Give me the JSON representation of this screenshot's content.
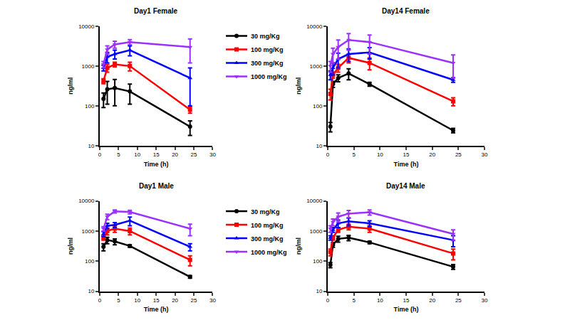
{
  "chart_data": [
    {
      "type": "line",
      "title": "Day1 Female",
      "x_label": "Time (h)",
      "y_label": "ng/ml",
      "x": [
        1,
        2,
        4,
        8,
        24
      ],
      "xlim": [
        0,
        30
      ],
      "xticks": [
        0,
        5,
        10,
        15,
        20,
        25,
        30
      ],
      "ylim": [
        10,
        10000
      ],
      "yticks": [
        10,
        100,
        1000,
        10000
      ],
      "log": "y",
      "grid": false,
      "legend": "right",
      "series": [
        {
          "name": "30 mg/Kg",
          "color": "#000000",
          "marker": "circle",
          "values": [
            150,
            260,
            280,
            230,
            30
          ],
          "errors": [
            60,
            150,
            180,
            120,
            12
          ]
        },
        {
          "name": "100 mg/Kg",
          "color": "#ff0000",
          "marker": "square",
          "values": [
            420,
            900,
            1100,
            1000,
            80
          ],
          "errors": [
            60,
            200,
            150,
            250,
            15
          ]
        },
        {
          "name": "300 mg/Kg",
          "color": "#0000ff",
          "marker": "triangle-up",
          "values": [
            900,
            1700,
            2000,
            2500,
            500
          ],
          "errors": [
            150,
            500,
            500,
            700,
            400
          ]
        },
        {
          "name": "1000 mg/Kg",
          "color": "#9b30ff",
          "marker": "triangle-down",
          "values": [
            1100,
            2600,
            3500,
            4000,
            3000
          ],
          "errors": [
            200,
            600,
            700,
            600,
            1800
          ]
        }
      ]
    },
    {
      "type": "line",
      "title": "Day14 Female",
      "x_label": "Time (h)",
      "y_label": "ng/ml",
      "x": [
        0.5,
        1,
        2,
        4,
        8,
        24
      ],
      "xlim": [
        0,
        30
      ],
      "xticks": [
        0,
        5,
        10,
        15,
        20,
        25,
        30
      ],
      "ylim": [
        10,
        10000
      ],
      "yticks": [
        10,
        100,
        1000,
        10000
      ],
      "log": "y",
      "grid": false,
      "series": [
        {
          "name": "30 mg/Kg",
          "color": "#000000",
          "marker": "circle",
          "values": [
            30,
            350,
            500,
            650,
            350,
            24
          ],
          "errors": [
            8,
            60,
            100,
            200,
            40,
            3
          ]
        },
        {
          "name": "100 mg/Kg",
          "color": "#ff0000",
          "marker": "square",
          "values": [
            200,
            600,
            900,
            1600,
            1200,
            130
          ],
          "errors": [
            60,
            100,
            200,
            400,
            400,
            30
          ]
        },
        {
          "name": "300 mg/Kg",
          "color": "#0000ff",
          "marker": "triangle-up",
          "values": [
            600,
            900,
            1500,
            2000,
            2200,
            450
          ],
          "errors": [
            150,
            300,
            600,
            700,
            700,
            60
          ]
        },
        {
          "name": "1000 mg/Kg",
          "color": "#9b30ff",
          "marker": "triangle-down",
          "values": [
            1000,
            2000,
            3000,
            4500,
            4000,
            1200
          ],
          "errors": [
            300,
            800,
            1500,
            2000,
            2000,
            700
          ]
        }
      ]
    },
    {
      "type": "line",
      "title": "Day1 Male",
      "x_label": "Time (h)",
      "y_label": "ng/ml",
      "x": [
        1,
        2,
        4,
        8,
        24
      ],
      "xlim": [
        0,
        30
      ],
      "xticks": [
        0,
        5,
        10,
        15,
        20,
        25,
        30
      ],
      "ylim": [
        10,
        10000
      ],
      "yticks": [
        10,
        100,
        1000,
        10000
      ],
      "log": "y",
      "grid": false,
      "legend": "right",
      "series": [
        {
          "name": "30 mg/Kg",
          "color": "#000000",
          "marker": "circle",
          "values": [
            300,
            500,
            450,
            320,
            30
          ],
          "errors": [
            80,
            120,
            100,
            30,
            3
          ]
        },
        {
          "name": "100 mg/Kg",
          "color": "#ff0000",
          "marker": "square",
          "values": [
            600,
            1000,
            1200,
            1000,
            110
          ],
          "errors": [
            100,
            250,
            300,
            250,
            40
          ]
        },
        {
          "name": "300 mg/Kg",
          "color": "#0000ff",
          "marker": "triangle-up",
          "values": [
            800,
            1500,
            1600,
            2200,
            300
          ],
          "errors": [
            150,
            300,
            300,
            700,
            80
          ]
        },
        {
          "name": "1000 mg/Kg",
          "color": "#9b30ff",
          "marker": "triangle-down",
          "values": [
            1200,
            3000,
            4500,
            4300,
            1200
          ],
          "errors": [
            200,
            600,
            500,
            600,
            500
          ]
        }
      ]
    },
    {
      "type": "line",
      "title": "Day14 Male",
      "x_label": "Time (h)",
      "y_label": "ng/ml",
      "x": [
        0.5,
        1,
        2,
        4,
        8,
        24
      ],
      "xlim": [
        0,
        30
      ],
      "xticks": [
        0,
        5,
        10,
        15,
        20,
        25,
        30
      ],
      "ylim": [
        10,
        10000
      ],
      "yticks": [
        10,
        100,
        1000,
        10000
      ],
      "log": "y",
      "grid": false,
      "series": [
        {
          "name": "30 mg/Kg",
          "color": "#000000",
          "marker": "circle",
          "values": [
            75,
            350,
            550,
            600,
            420,
            65
          ],
          "errors": [
            15,
            60,
            120,
            120,
            40,
            12
          ]
        },
        {
          "name": "100 mg/Kg",
          "color": "#ff0000",
          "marker": "square",
          "values": [
            200,
            600,
            1100,
            1400,
            1200,
            180
          ],
          "errors": [
            50,
            100,
            200,
            300,
            300,
            70
          ]
        },
        {
          "name": "300 mg/Kg",
          "color": "#0000ff",
          "marker": "triangle-up",
          "values": [
            600,
            1100,
            1800,
            2100,
            1800,
            500
          ],
          "errors": [
            100,
            200,
            500,
            600,
            400,
            200
          ]
        },
        {
          "name": "1000 mg/Kg",
          "color": "#9b30ff",
          "marker": "triangle-down",
          "values": [
            1200,
            2000,
            3000,
            3800,
            4200,
            800
          ],
          "errors": [
            300,
            500,
            1000,
            1000,
            800,
            300
          ]
        }
      ]
    }
  ]
}
